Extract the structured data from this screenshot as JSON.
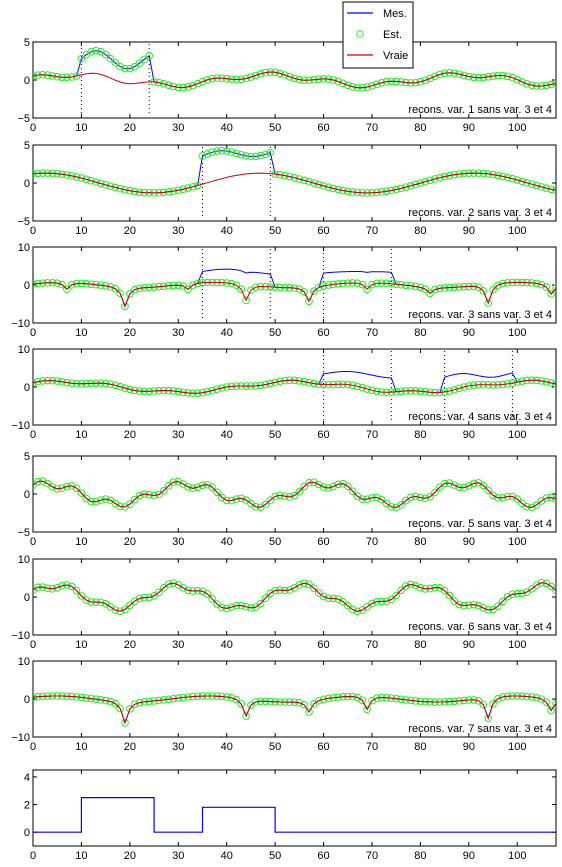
{
  "figure": {
    "background": "#ffffff"
  },
  "colors": {
    "mes": "#0000ff",
    "est": "#22ee22",
    "vraie": "#cc0000",
    "axis": "#000000",
    "sep": "#000000",
    "step": "#0000ff"
  },
  "legend": {
    "placement": "top-right",
    "items": [
      {
        "label": "Mes.",
        "style": "line",
        "color": "#0000ff"
      },
      {
        "label": "Est.",
        "style": "circle",
        "color": "#22ee22"
      },
      {
        "label": "Vraie",
        "style": "line",
        "color": "#cc0000"
      }
    ]
  },
  "chart_data": [
    {
      "type": "line",
      "annotation": "recons. var. 1  sans var. 3 et 4",
      "xlim": [
        0,
        108
      ],
      "ylim": [
        -5,
        5
      ],
      "xticks": [
        0,
        10,
        20,
        30,
        40,
        50,
        60,
        70,
        80,
        90,
        100
      ],
      "yticks": [
        -5,
        0,
        5
      ],
      "ytick_labels": [
        "−5",
        "0",
        "5"
      ],
      "base": {
        "components": [
          [
            0.7,
            0.155,
            0.3
          ],
          [
            0.35,
            0.52,
            1.1
          ]
        ]
      },
      "faults": [
        {
          "x0": 10,
          "x1": 24,
          "offset": 2.6,
          "ripple": [
            1.0,
            0.5
          ]
        }
      ],
      "dips": [],
      "vlines": [
        10,
        24
      ],
      "markers": true
    },
    {
      "type": "line",
      "annotation": "recons. var. 2  sans var. 3 et 4",
      "xlim": [
        0,
        108
      ],
      "ylim": [
        -5,
        5
      ],
      "xticks": [
        0,
        10,
        20,
        30,
        40,
        50,
        60,
        70,
        80,
        90,
        100
      ],
      "yticks": [
        -5,
        0,
        5
      ],
      "ytick_labels": [
        "−5",
        "0",
        "5"
      ],
      "base": {
        "components": [
          [
            1.3,
            0.142,
            1.2
          ]
        ]
      },
      "faults": [
        {
          "x0": 35,
          "x1": 49,
          "offset": 3.6,
          "ripple": [
            0.5,
            0.45
          ]
        }
      ],
      "dips": [],
      "vlines": [
        35,
        49
      ],
      "markers": true
    },
    {
      "type": "line",
      "annotation": "recons. var. 3  sans var. 3 et 4",
      "xlim": [
        0,
        108
      ],
      "ylim": [
        -10,
        10
      ],
      "xticks": [
        0,
        10,
        20,
        30,
        40,
        50,
        60,
        70,
        80,
        90,
        100
      ],
      "yticks": [
        -10,
        0,
        10
      ],
      "ytick_labels": [
        "−10",
        "0",
        "10"
      ],
      "base": {
        "components": [
          [
            0.7,
            0.2,
            0.4
          ]
        ]
      },
      "faults": [
        {
          "x0": 35,
          "x1": 49,
          "offset": 3.5,
          "ripple": [
            0.6,
            0.3
          ]
        },
        {
          "x0": 60,
          "x1": 74,
          "offset": 3.2,
          "ripple": [
            0.3,
            0.2
          ]
        }
      ],
      "dips": [
        {
          "x": 7,
          "d": 1.8
        },
        {
          "x": 19,
          "d": 5.0
        },
        {
          "x": 32,
          "d": 1.5
        },
        {
          "x": 44,
          "d": 4.2
        },
        {
          "x": 57,
          "d": 3.8
        },
        {
          "x": 69,
          "d": 1.8
        },
        {
          "x": 82,
          "d": 1.6
        },
        {
          "x": 94,
          "d": 5.0
        },
        {
          "x": 107,
          "d": 2.5
        }
      ],
      "vlines": [
        35,
        49,
        60,
        74
      ],
      "markers": true
    },
    {
      "type": "line",
      "annotation": "recons. var. 4  sans var. 3 et 4",
      "xlim": [
        0,
        108
      ],
      "ylim": [
        -10,
        10
      ],
      "xticks": [
        0,
        10,
        20,
        30,
        40,
        50,
        60,
        70,
        80,
        90,
        100
      ],
      "yticks": [
        -10,
        0,
        10
      ],
      "ytick_labels": [
        "−10",
        "0",
        "10"
      ],
      "base": {
        "components": [
          [
            1.4,
            0.13,
            0.8
          ],
          [
            0.4,
            0.5,
            0.2
          ]
        ]
      },
      "faults": [
        {
          "x0": 60,
          "x1": 74,
          "offset": 3.3,
          "ripple": [
            0.6,
            0.3
          ]
        },
        {
          "x0": 85,
          "x1": 99,
          "offset": 3.0,
          "ripple": [
            0.6,
            0.5
          ]
        }
      ],
      "dips": [],
      "vlines": [
        60,
        74,
        85,
        99
      ],
      "markers": true
    },
    {
      "type": "line",
      "annotation": "recons. var. 5  sans var. 3 et 4",
      "xlim": [
        0,
        108
      ],
      "ylim": [
        -5,
        5
      ],
      "xticks": [
        0,
        10,
        20,
        30,
        40,
        50,
        60,
        70,
        80,
        90,
        100
      ],
      "yticks": [
        -5,
        0,
        5
      ],
      "ytick_labels": [
        "−5",
        "0",
        "5"
      ],
      "base": {
        "components": [
          [
            1.3,
            0.22,
            0.9
          ],
          [
            0.5,
            0.9,
            0.3
          ]
        ]
      },
      "faults": [],
      "dips": [],
      "vlines": [],
      "markers": true
    },
    {
      "type": "line",
      "annotation": "recons. var. 6  sans var. 3 et 4",
      "xlim": [
        0,
        108
      ],
      "ylim": [
        -10,
        10
      ],
      "xticks": [
        0,
        10,
        20,
        30,
        40,
        50,
        60,
        70,
        80,
        90,
        100
      ],
      "yticks": [
        -10,
        0,
        10
      ],
      "ytick_labels": [
        "−10",
        "0",
        "10"
      ],
      "base": {
        "components": [
          [
            3.0,
            0.25,
            0.4
          ],
          [
            0.8,
            0.9,
            1.0
          ]
        ]
      },
      "faults": [],
      "dips": [],
      "vlines": [],
      "markers": true
    },
    {
      "type": "line",
      "annotation": "recons. var. 7  sans var. 3 et 4",
      "xlim": [
        0,
        108
      ],
      "ylim": [
        -10,
        10
      ],
      "xticks": [
        0,
        10,
        20,
        30,
        40,
        50,
        60,
        70,
        80,
        90,
        100
      ],
      "yticks": [
        -10,
        0,
        10
      ],
      "ytick_labels": [
        "−10",
        "0",
        "10"
      ],
      "base": {
        "components": [
          [
            0.8,
            0.2,
            0.6
          ]
        ]
      },
      "faults": [],
      "dips": [
        {
          "x": 19,
          "d": 5.5
        },
        {
          "x": 44,
          "d": 4.5
        },
        {
          "x": 57,
          "d": 3.0
        },
        {
          "x": 69,
          "d": 3.5
        },
        {
          "x": 94,
          "d": 5.5
        },
        {
          "x": 107,
          "d": 3.0
        }
      ],
      "vlines": [],
      "markers": true
    },
    {
      "type": "line",
      "annotation": "",
      "xlim": [
        0,
        108
      ],
      "ylim": [
        -1,
        4.5
      ],
      "xticks": [
        0,
        10,
        20,
        30,
        40,
        50,
        60,
        70,
        80,
        90,
        100
      ],
      "yticks": [
        0,
        2,
        4
      ],
      "ytick_labels": [
        "0",
        "2",
        "4"
      ],
      "step": {
        "x": [
          0,
          10,
          10,
          25,
          25,
          35,
          35,
          50,
          50,
          108
        ],
        "y": [
          0,
          0,
          2.5,
          2.5,
          0,
          0,
          1.8,
          1.8,
          0,
          0
        ]
      },
      "markers": false
    }
  ]
}
